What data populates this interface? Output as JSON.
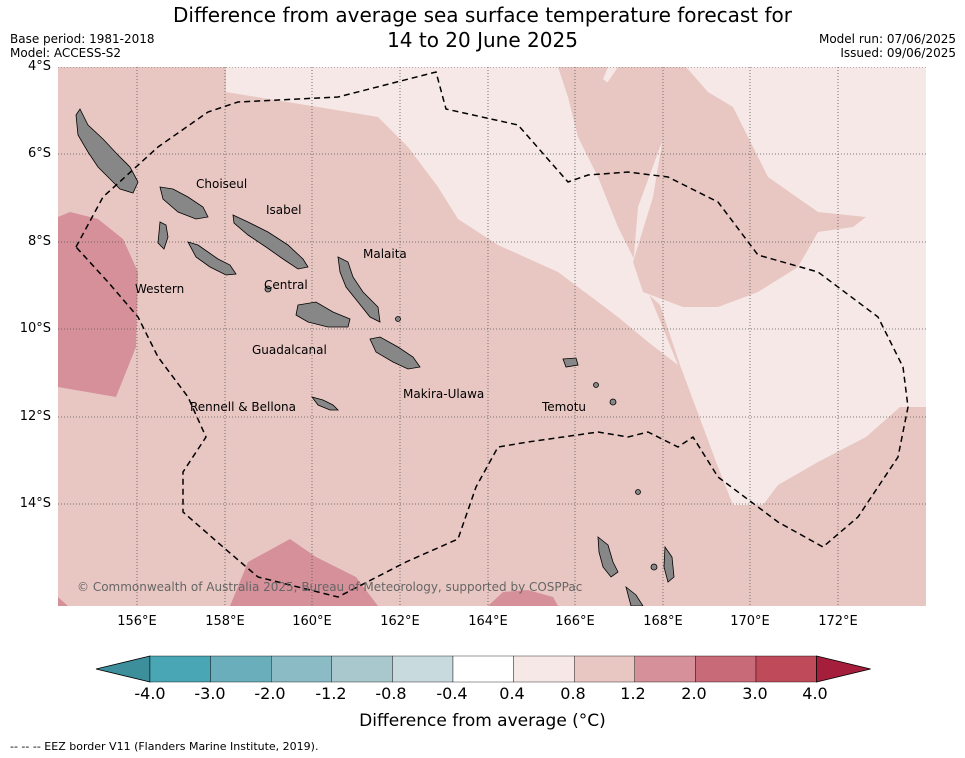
{
  "header": {
    "title_line1": "Difference from average sea surface temperature forecast for",
    "title_line2": "14 to 20 June 2025",
    "base_period": "Base period: 1981-2018",
    "model": "Model: ACCESS-S2",
    "model_run": "Model run: 07/06/2025",
    "issued": "Issued: 09/06/2025"
  },
  "map": {
    "lat_labels": [
      "4°S",
      "6°S",
      "8°S",
      "10°S",
      "12°S",
      "14°S"
    ],
    "lon_labels": [
      "156°E",
      "158°E",
      "160°E",
      "162°E",
      "164°E",
      "166°E",
      "168°E",
      "170°E",
      "172°E"
    ],
    "places": {
      "choiseul": "Choiseul",
      "isabel": "Isabel",
      "malaita": "Malaita",
      "western": "Western",
      "central": "Central",
      "guadalcanal": "Guadalcanal",
      "makira_ulawa": "Makira-Ulawa",
      "rennell_bellona": "Rennell & Bellona",
      "temotu": "Temotu"
    },
    "copyright": "© Commonwealth of Australia 2025, Bureau of Meteorology, supported by COSPPac",
    "colors": {
      "band_0_4_0_8": "#f5e8e6",
      "band_0_8_1_2": "#e8c7c3",
      "band_1_2_2_0": "#d5909a",
      "land": "#878787"
    }
  },
  "colorbar": {
    "tick_labels": [
      "-4.0",
      "-3.0",
      "-2.0",
      "-1.2",
      "-0.8",
      "-0.4",
      "0.4",
      "0.8",
      "1.2",
      "2.0",
      "3.0",
      "4.0"
    ],
    "colors": [
      "#3d8f9c",
      "#49a6b4",
      "#6aaebb",
      "#8bbcc5",
      "#a9c8cd",
      "#c8dade",
      "#ffffff",
      "#f5e8e6",
      "#e8c7c3",
      "#d5909a",
      "#c96a78",
      "#bf4a5a",
      "#a51f3c"
    ],
    "title": "Difference from average (°C)"
  },
  "footer": {
    "eez_note": "--  --  -- EEZ border V11 (Flanders Marine Institute, 2019)."
  }
}
